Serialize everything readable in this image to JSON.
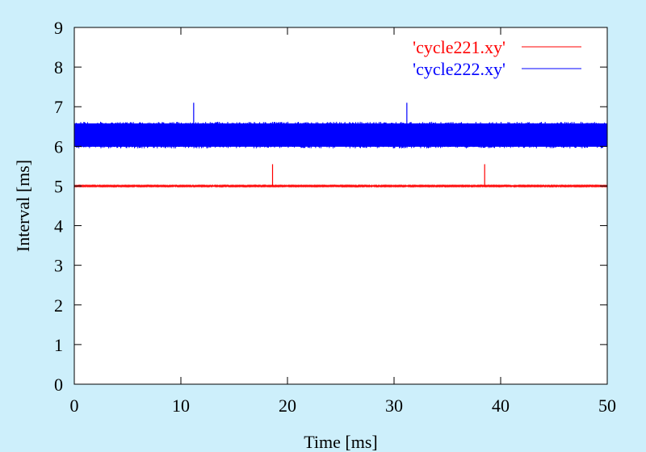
{
  "chart_data": {
    "type": "line",
    "title": "",
    "xlabel": "Time [ms]",
    "ylabel": "Interval [ms]",
    "xlim": [
      0,
      50
    ],
    "ylim": [
      0,
      9
    ],
    "x_ticks": [
      0,
      10,
      20,
      30,
      40,
      50
    ],
    "y_ticks": [
      0,
      1,
      2,
      3,
      4,
      5,
      6,
      7,
      8,
      9
    ],
    "grid": false,
    "legend_position": "top-right",
    "background_color": "#cdeffb",
    "plot_background": "#ffffff",
    "series": [
      {
        "name": "'cycle221.xy'",
        "color": "#ff0000",
        "baseline": 5.0,
        "band_low": 4.98,
        "band_high": 5.02,
        "spikes": [
          {
            "x": 18.6,
            "y": 5.55
          },
          {
            "x": 38.5,
            "y": 5.55
          }
        ]
      },
      {
        "name": "'cycle222.xy'",
        "color": "#0000ff",
        "baseline": 6.3,
        "band_low": 5.95,
        "band_high": 6.62,
        "spikes": [
          {
            "x": 11.2,
            "y": 7.1
          },
          {
            "x": 31.2,
            "y": 7.1
          }
        ]
      }
    ]
  }
}
